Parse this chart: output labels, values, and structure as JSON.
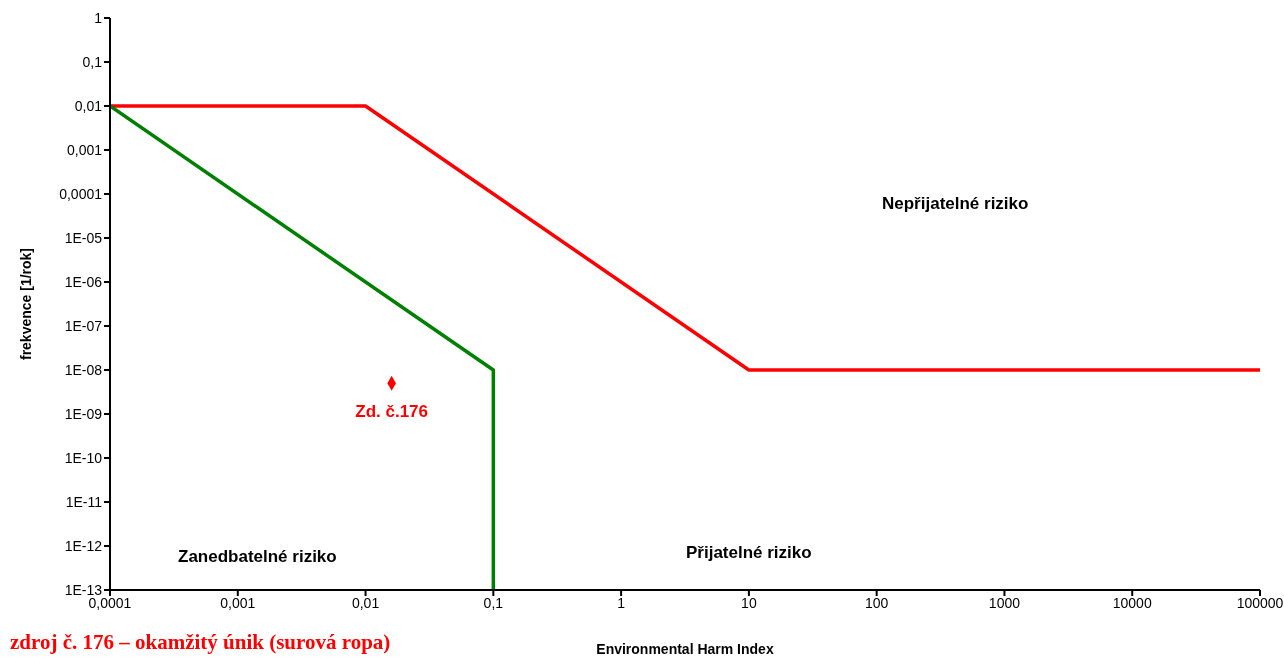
{
  "chart_data": {
    "type": "line",
    "xlabel": "Environmental Harm Index",
    "ylabel": "frekvence [1/rok]",
    "log": "xy",
    "grid": false,
    "legend": false,
    "marker": "none",
    "line_style": "solid",
    "xlim": [
      0.0001,
      100000
    ],
    "xticks": [
      {
        "value": 0.0001,
        "label": "0,0001"
      },
      {
        "value": 0.001,
        "label": "0,001"
      },
      {
        "value": 0.01,
        "label": "0,01"
      },
      {
        "value": 0.1,
        "label": "0,1"
      },
      1,
      10,
      100,
      1000,
      10000,
      100000
    ],
    "ylim": [
      1e-13,
      1
    ],
    "yticks": [
      {
        "value": 1e-13,
        "label": "1E-13"
      },
      {
        "value": 1e-12,
        "label": "1E-12"
      },
      {
        "value": 1e-11,
        "label": "1E-11"
      },
      {
        "value": 1e-10,
        "label": "1E-10"
      },
      {
        "value": 1e-09,
        "label": "1E-09"
      },
      {
        "value": 1e-08,
        "label": "1E-08"
      },
      {
        "value": 1e-07,
        "label": "1E-07"
      },
      {
        "value": 1e-06,
        "label": "1E-06"
      },
      {
        "value": 1e-05,
        "label": "1E-05"
      },
      {
        "value": 0.0001,
        "label": "0,0001"
      },
      {
        "value": 0.001,
        "label": "0,001"
      },
      {
        "value": 0.01,
        "label": "0,01"
      },
      {
        "value": 0.1,
        "label": "0,1"
      },
      1
    ],
    "series": [
      {
        "color": "#ff0000",
        "x": [
          0.0001,
          0.01,
          10,
          100000
        ],
        "values": [
          0.01,
          0.01,
          1e-08,
          1e-08
        ]
      },
      {
        "color": "#008000",
        "x": [
          0.0001,
          0.1,
          0.1
        ],
        "values": [
          0.01,
          1e-08,
          1e-13
        ]
      },
      {
        "type": "scatter",
        "name": "Zd. č.176",
        "color": "#ff0000",
        "marker": "diamond",
        "x": [
          0.016
        ],
        "values": [
          5e-09
        ]
      }
    ],
    "annotations": [
      "Nepřijatelné riziko",
      "Přijatelné riziko",
      "Zanedbatelné riziko",
      "zdroj č. 176 – okamžitý únik (surová ropa)"
    ]
  }
}
